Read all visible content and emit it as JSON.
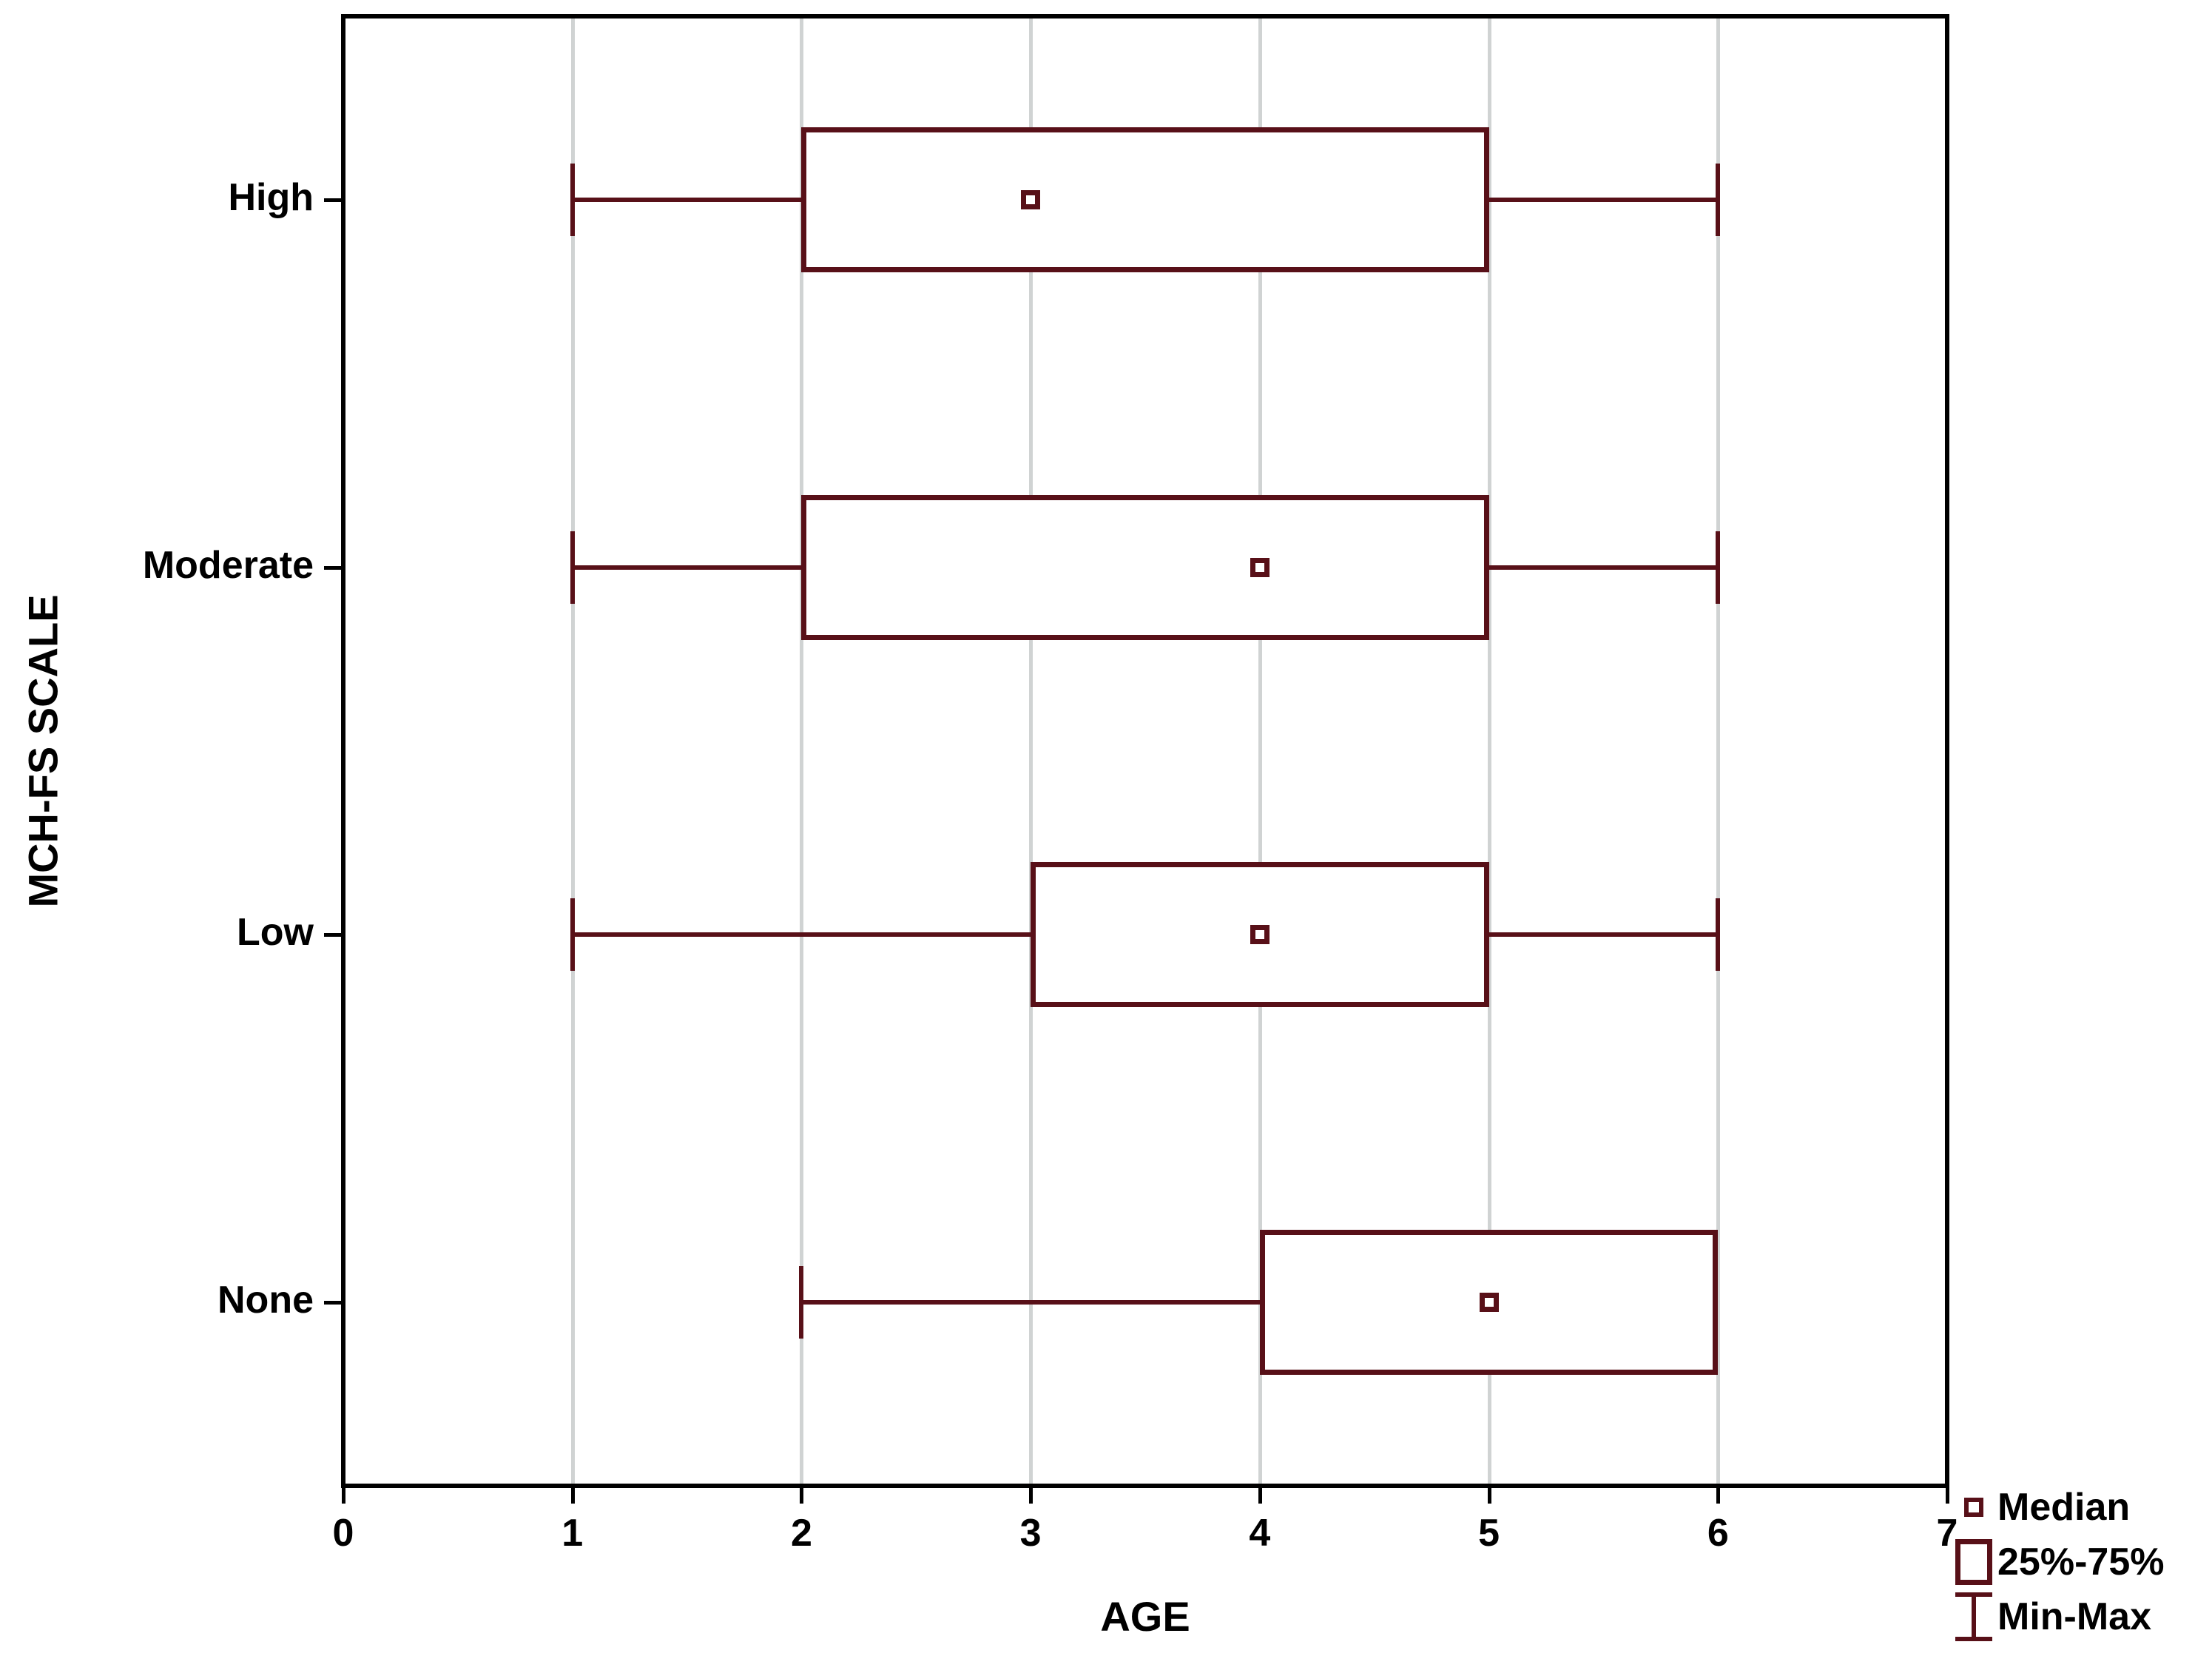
{
  "chart_data": {
    "type": "boxplot",
    "orientation": "horizontal",
    "title": "",
    "xlabel": "AGE",
    "ylabel": "MCH-FS SCALE",
    "xlim": [
      0,
      7
    ],
    "x_ticks": [
      "0",
      "1",
      "2",
      "3",
      "4",
      "5",
      "6",
      "7"
    ],
    "grid": "vertical-gridlines-on",
    "categories": [
      "High",
      "Moderate",
      "Low",
      "None"
    ],
    "series": [
      {
        "category": "High",
        "min": 1,
        "q1": 2,
        "median": 3,
        "q3": 5,
        "max": 6
      },
      {
        "category": "Moderate",
        "min": 1,
        "q1": 2,
        "median": 4,
        "q3": 5,
        "max": 6
      },
      {
        "category": "Low",
        "min": 1,
        "q1": 3,
        "median": 4,
        "q3": 5,
        "max": 6
      },
      {
        "category": "None",
        "min": 2,
        "q1": 4,
        "median": 5,
        "q3": 6,
        "max": 6
      }
    ],
    "legend_position": "bottom-right",
    "legend": [
      {
        "marker": "median-square-icon",
        "label": "Median"
      },
      {
        "marker": "box-icon",
        "label": "25%-75%"
      },
      {
        "marker": "whisker-icon",
        "label": "Min-Max"
      }
    ],
    "colors": {
      "box_stroke": "#581018",
      "box_fill": "#ffffff",
      "gridline": "#d0d3d3",
      "axis": "#000000",
      "text": "#000000",
      "background": "#ffffff"
    }
  }
}
